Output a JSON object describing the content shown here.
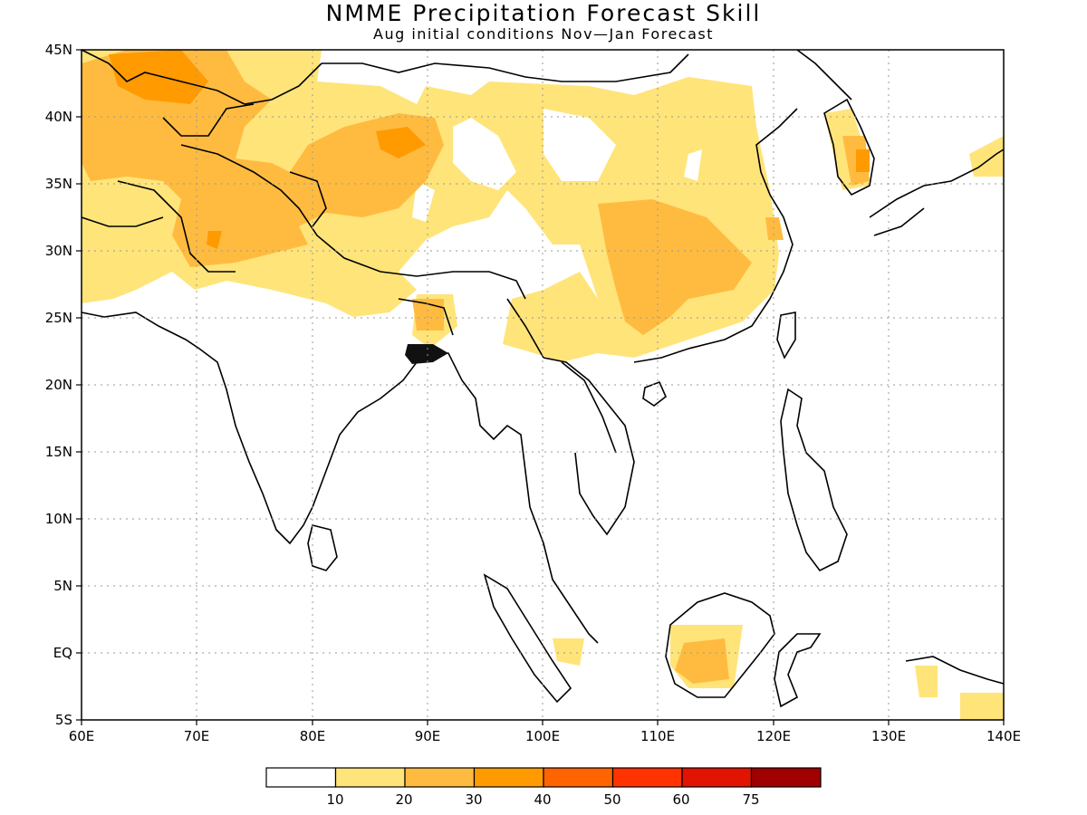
{
  "title": "NMME Precipitation Forecast Skill",
  "subtitle": "Aug initial conditions  Nov—Jan Forecast",
  "lat_ticks": [
    "45N",
    "40N",
    "35N",
    "30N",
    "25N",
    "20N",
    "15N",
    "10N",
    "5N",
    "EQ",
    "5S"
  ],
  "lon_ticks": [
    "60E",
    "70E",
    "80E",
    "90E",
    "100E",
    "110E",
    "120E",
    "130E",
    "140E"
  ],
  "legend": {
    "labels": [
      "10",
      "20",
      "30",
      "40",
      "50",
      "60",
      "75"
    ],
    "colors": [
      "#ffffff",
      "#ffe47a",
      "#ffbb40",
      "#ff9a00",
      "#ff6400",
      "#ff3200",
      "#e01400",
      "#a00000"
    ]
  },
  "map": {
    "lon_range": [
      60,
      140
    ],
    "lat_range": [
      -5,
      45
    ],
    "grid": "dotted"
  }
}
